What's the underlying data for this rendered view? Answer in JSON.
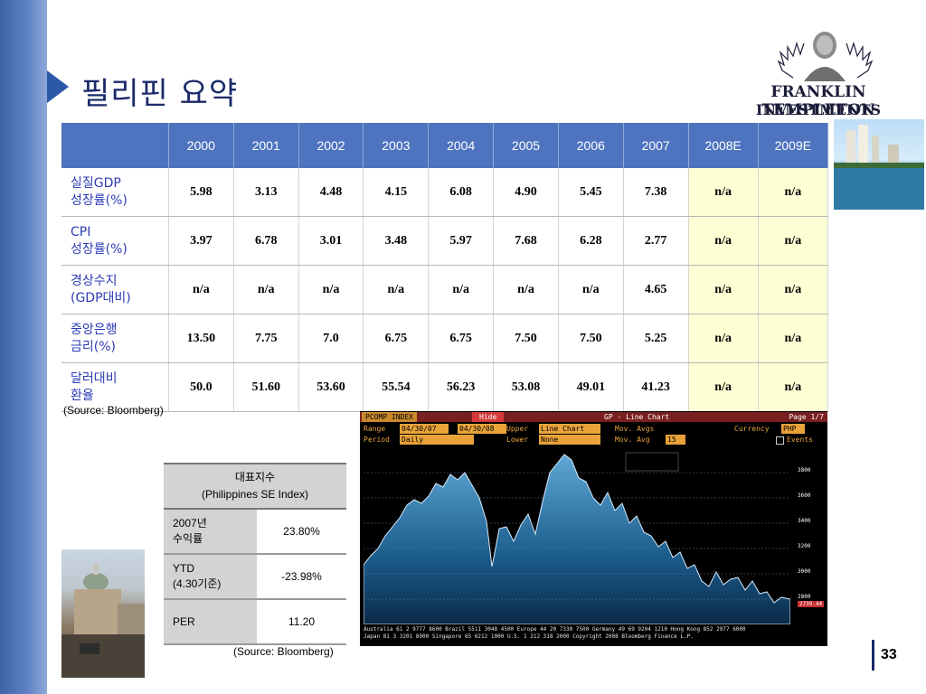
{
  "slide": {
    "title": "필리핀 요약",
    "page_number": "33"
  },
  "logo": {
    "line1": "FRANKLIN TEMPLETON",
    "line2": "INVESTMENTS"
  },
  "main_table": {
    "years": [
      "2000",
      "2001",
      "2002",
      "2003",
      "2004",
      "2005",
      "2006",
      "2007",
      "2008E",
      "2009E"
    ],
    "rows": [
      {
        "label_line1": "실질GDP",
        "label_line2": "성장률(%)",
        "values": [
          "5.98",
          "3.13",
          "4.48",
          "4.15",
          "6.08",
          "4.90",
          "5.45",
          "7.38",
          "n/a",
          "n/a"
        ]
      },
      {
        "label_line1": "CPI",
        "label_line2": "성장률(%)",
        "values": [
          "3.97",
          "6.78",
          "3.01",
          "3.48",
          "5.97",
          "7.68",
          "6.28",
          "2.77",
          "n/a",
          "n/a"
        ]
      },
      {
        "label_line1": "경상수지",
        "label_line2": "(GDP대비)",
        "values": [
          "n/a",
          "n/a",
          "n/a",
          "n/a",
          "n/a",
          "n/a",
          "n/a",
          "4.65",
          "n/a",
          "n/a"
        ]
      },
      {
        "label_line1": "중앙은행",
        "label_line2": "금리(%)",
        "values": [
          "13.50",
          "7.75",
          "7.0",
          "6.75",
          "6.75",
          "7.50",
          "7.50",
          "5.25",
          "n/a",
          "n/a"
        ]
      },
      {
        "label_line1": "달러대비",
        "label_line2": "환율",
        "values": [
          "50.0",
          "51.60",
          "53.60",
          "55.54",
          "56.23",
          "53.08",
          "49.01",
          "41.23",
          "n/a",
          "n/a"
        ]
      }
    ],
    "source": "(Source: Bloomberg)"
  },
  "index_table": {
    "header_line1": "대표지수",
    "header_line2": "(Philippines SE Index)",
    "rows": [
      {
        "label_line1": "2007년",
        "label_line2": "수익률",
        "value": "23.80%"
      },
      {
        "label_line1": "YTD",
        "label_line2": "(4.30기준)",
        "value": "-23.98%"
      },
      {
        "label_line1": "PER",
        "label_line2": "",
        "value": "11.20"
      }
    ],
    "source": "(Source: Bloomberg)"
  },
  "bloomberg": {
    "header_left": "PCOMP INDEX",
    "hide_button": "Hide",
    "header_center": "GP - Line Chart",
    "header_right": "Page 1/7",
    "range_label": "Range",
    "range_from": "04/30/07",
    "range_to": "04/30/08",
    "upper_label": "Upper",
    "upper_value": "Line Chart",
    "mov_avgs_label": "Mov. Avgs",
    "currency_label": "Currency",
    "currency_value": "PHP",
    "period_label": "Period",
    "period_value": "Daily",
    "lower_label": "Lower",
    "lower_value": "None",
    "mov_avg_label": "Mov. Avg",
    "mov_avg_value": "15",
    "events_label": "Events",
    "y_ticks": [
      "3800",
      "3600",
      "3400",
      "3200",
      "3000",
      "2800"
    ],
    "last_price_readout": "2739.44",
    "footer_line1": "Australia 61 2 9777 8600 Brazil 5511 3048 4500 Europe 44 20 7330 7500 Germany 49 69 9204 1210 Hong Kong 852 2977 6000",
    "footer_line2": "Japan 81 3 3201 8900   Singapore 65 6212 1000   U.S. 1 212 318 2000   Copyright 2008 Bloomberg Finance L.P."
  },
  "colors": {
    "table_header": "#4e74bf",
    "highlight": "#ffffd5",
    "row_label": "#2b3bb5",
    "chart_fill_top": "#5fa9d6"
  }
}
